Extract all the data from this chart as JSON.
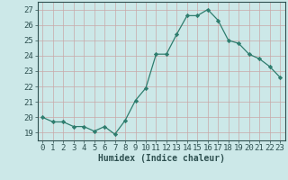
{
  "x": [
    0,
    1,
    2,
    3,
    4,
    5,
    6,
    7,
    8,
    9,
    10,
    11,
    12,
    13,
    14,
    15,
    16,
    17,
    18,
    19,
    20,
    21,
    22,
    23
  ],
  "y": [
    20.0,
    19.7,
    19.7,
    19.4,
    19.4,
    19.1,
    19.4,
    18.9,
    19.8,
    21.1,
    21.9,
    24.1,
    24.1,
    25.4,
    26.6,
    26.6,
    27.0,
    26.3,
    25.0,
    24.8,
    24.1,
    23.8,
    23.3,
    22.6
  ],
  "xlabel": "Humidex (Indice chaleur)",
  "xlim": [
    -0.5,
    23.5
  ],
  "ylim": [
    18.5,
    27.5
  ],
  "yticks": [
    19,
    20,
    21,
    22,
    23,
    24,
    25,
    26,
    27
  ],
  "xticks": [
    0,
    1,
    2,
    3,
    4,
    5,
    6,
    7,
    8,
    9,
    10,
    11,
    12,
    13,
    14,
    15,
    16,
    17,
    18,
    19,
    20,
    21,
    22,
    23
  ],
  "line_color": "#2e7d6e",
  "marker_color": "#2e7d6e",
  "bg_color": "#cce8e8",
  "grid_color": "#c8a8a8",
  "tick_label_color": "#2e5050",
  "xlabel_color": "#2e5050",
  "font_size": 6.5
}
